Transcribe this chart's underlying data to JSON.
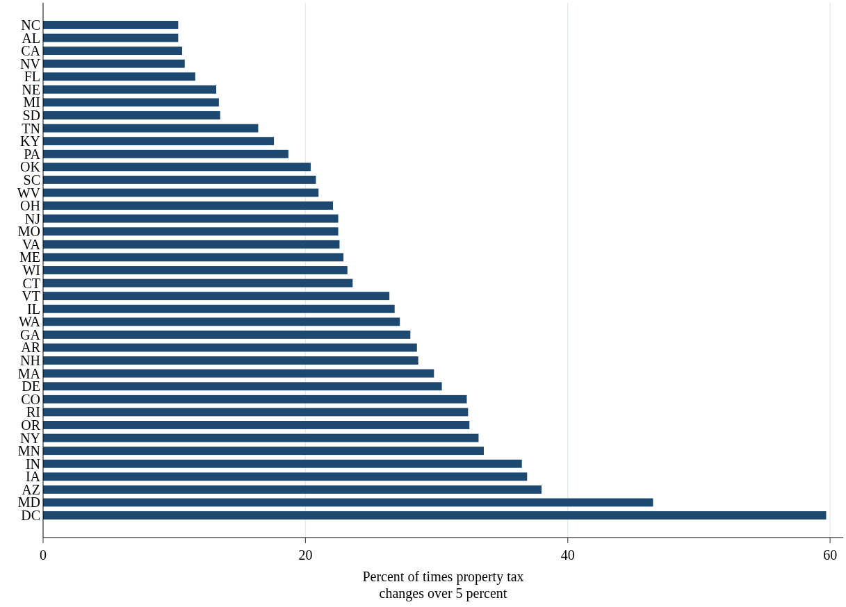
{
  "chart_data": {
    "type": "bar",
    "orientation": "horizontal",
    "categories": [
      "NC",
      "AL",
      "CA",
      "NV",
      "FL",
      "NE",
      "MI",
      "SD",
      "TN",
      "KY",
      "PA",
      "OK",
      "SC",
      "WV",
      "OH",
      "NJ",
      "MO",
      "VA",
      "ME",
      "WI",
      "CT",
      "VT",
      "IL",
      "WA",
      "GA",
      "AR",
      "NH",
      "MA",
      "DE",
      "CO",
      "RI",
      "OR",
      "NY",
      "MN",
      "IN",
      "IA",
      "AZ",
      "MD",
      "DC"
    ],
    "values": [
      10.3,
      10.3,
      10.6,
      10.8,
      11.6,
      13.2,
      13.4,
      13.5,
      16.4,
      17.6,
      18.7,
      20.4,
      20.8,
      21.0,
      22.1,
      22.5,
      22.5,
      22.6,
      22.9,
      23.2,
      23.6,
      26.4,
      26.8,
      27.2,
      28.0,
      28.5,
      28.6,
      29.8,
      30.4,
      32.3,
      32.4,
      32.5,
      33.2,
      33.6,
      36.5,
      36.9,
      38.0,
      46.5,
      59.7
    ],
    "color": "#1d4870",
    "xlim": [
      0,
      61
    ],
    "xticks": [
      0,
      20,
      40,
      60
    ],
    "grid": "x",
    "xlabel": "Percent of times property tax\nchanges over 5 percent"
  }
}
